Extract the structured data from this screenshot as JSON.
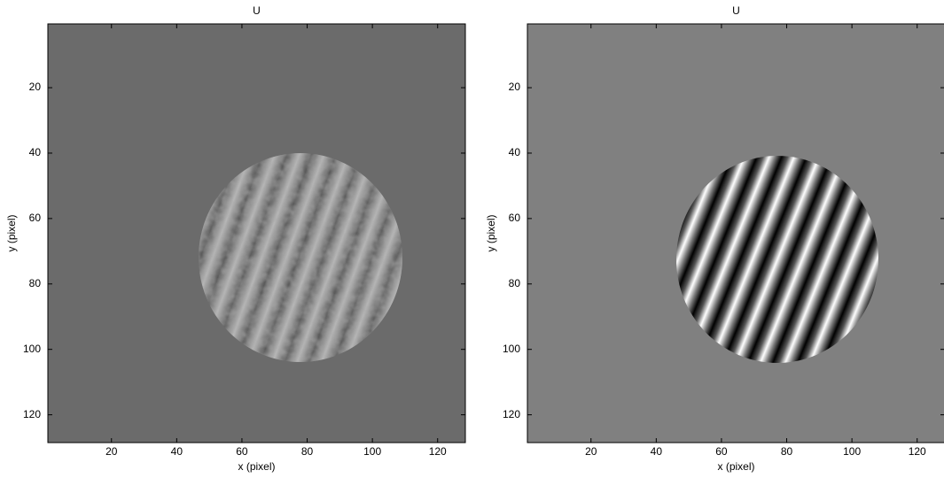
{
  "chart_data": [
    {
      "type": "image",
      "title": "U",
      "x_label": "x (pixel)",
      "y_label": "y (pixel)",
      "xlim": [
        0.5,
        128.5
      ],
      "ylim": [
        0.5,
        128.5
      ],
      "y_reversed": true,
      "xticks": [
        20,
        40,
        60,
        80,
        100,
        120
      ],
      "yticks": [
        20,
        40,
        60,
        80,
        100,
        120
      ]
    },
    {
      "type": "image",
      "title": "U",
      "x_label": "x (pixel)",
      "y_label": "y (pixel)",
      "xlim": [
        0.5,
        128.5
      ],
      "ylim": [
        0.5,
        128.5
      ],
      "y_reversed": true,
      "xticks": [
        20,
        40,
        60,
        80,
        100,
        120
      ],
      "yticks": [
        20,
        40,
        60,
        80,
        100,
        120
      ]
    }
  ]
}
